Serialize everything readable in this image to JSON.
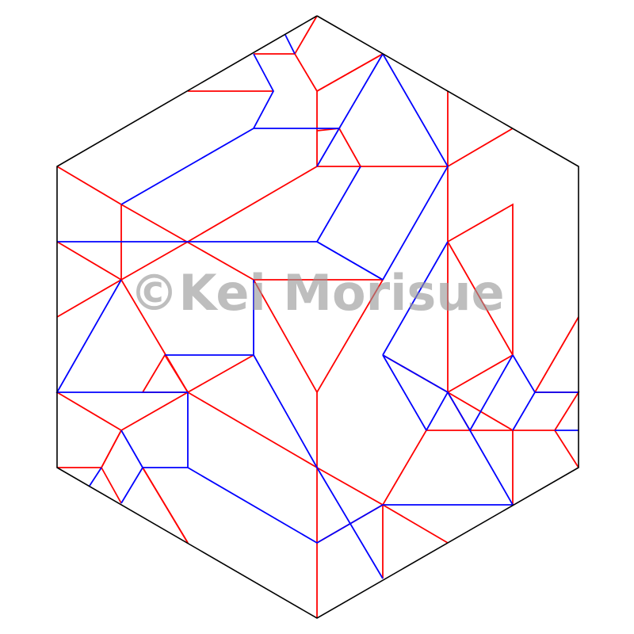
{
  "diagram": {
    "type": "origami-crease-pattern",
    "shape": "hexagon",
    "colors": {
      "border": "#000000",
      "mountain": "#ff0000",
      "valley": "#0000ff",
      "background": "#ffffff"
    }
  },
  "watermark": {
    "text": "©Kei Morisue"
  }
}
